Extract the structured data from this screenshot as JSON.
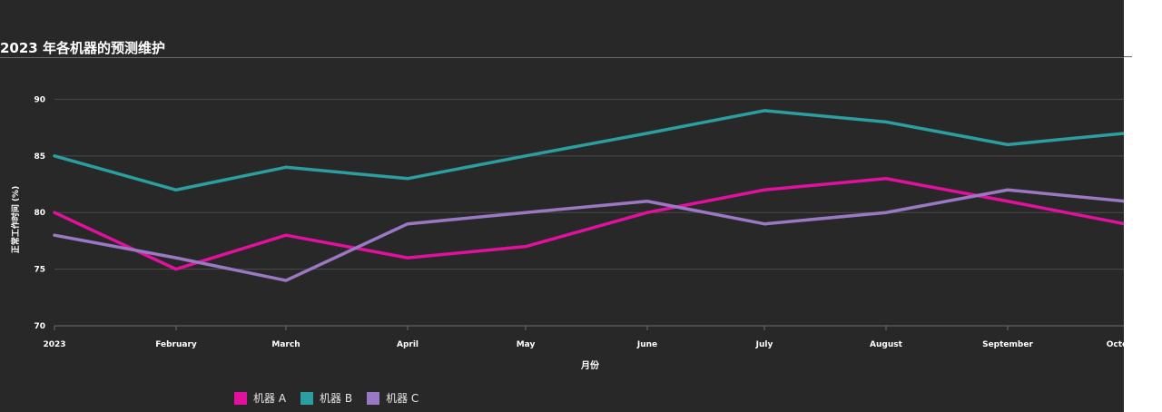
{
  "chart_data": {
    "type": "line",
    "title": "2023 年各机器的预测维护",
    "xlabel": "月份",
    "ylabel": "正常工作时间 (%)",
    "categories": [
      "2023",
      "February",
      "March",
      "April",
      "May",
      "June",
      "July",
      "August",
      "September",
      "October"
    ],
    "ylim": [
      70,
      93
    ],
    "yticks": [
      70,
      75,
      80,
      85,
      90
    ],
    "grid": true,
    "legend_position": "bottom-left",
    "series": [
      {
        "name": "机器 A",
        "color": "#e0119d",
        "values": [
          80,
          75,
          78,
          76,
          77,
          80,
          82,
          83,
          81,
          79
        ]
      },
      {
        "name": "机器 B",
        "color": "#2b9ea0",
        "values": [
          85,
          82,
          84,
          83,
          85,
          87,
          89,
          88,
          86,
          87
        ]
      },
      {
        "name": "机器 C",
        "color": "#9a78c4",
        "values": [
          78,
          76,
          74,
          79,
          80,
          81,
          79,
          80,
          82,
          81
        ]
      }
    ]
  }
}
